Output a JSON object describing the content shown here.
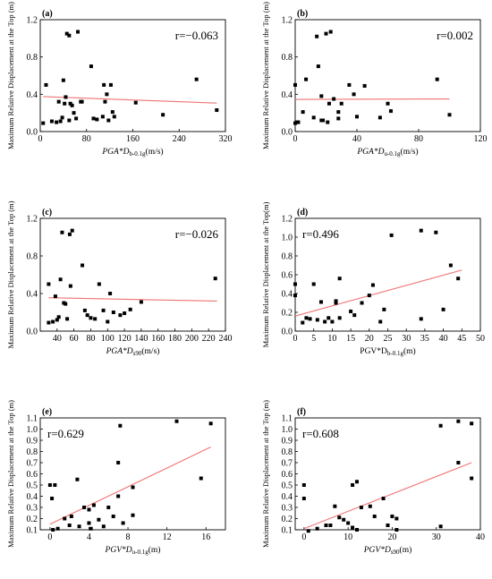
{
  "chart_data": [
    {
      "type": "scatter",
      "panel": "(a)",
      "ylabel": "Maximum Relative Displacement at the Top (m)",
      "xlabel": "PGA*D",
      "xlabel_sub": "b-0.1g",
      "xlabel_unit": "(m/s)",
      "xlabel_italic": true,
      "annotation": "r=−0.063",
      "annotation_pos": "top-right",
      "xlim": [
        0,
        320
      ],
      "ylim": [
        0,
        1.2
      ],
      "xticks": [
        "0",
        "80",
        "160",
        "240",
        "320"
      ],
      "yticks": [
        "0.0",
        "0.4",
        "0.8",
        "1.2"
      ],
      "fit": {
        "x": [
          5,
          305
        ],
        "y": [
          0.375,
          0.305
        ]
      },
      "points": [
        [
          5,
          0.09
        ],
        [
          10,
          0.5
        ],
        [
          20,
          0.11
        ],
        [
          28,
          0.1
        ],
        [
          32,
          0.32
        ],
        [
          35,
          0.11
        ],
        [
          38,
          0.15
        ],
        [
          40,
          0.55
        ],
        [
          42,
          0.3
        ],
        [
          44,
          0.37
        ],
        [
          46,
          1.05
        ],
        [
          50,
          1.03
        ],
        [
          50,
          0.12
        ],
        [
          52,
          0.3
        ],
        [
          55,
          0.28
        ],
        [
          58,
          0.2
        ],
        [
          62,
          0.14
        ],
        [
          65,
          1.07
        ],
        [
          70,
          0.32
        ],
        [
          72,
          0.32
        ],
        [
          88,
          0.7
        ],
        [
          92,
          0.14
        ],
        [
          98,
          0.13
        ],
        [
          108,
          0.16
        ],
        [
          110,
          0.5
        ],
        [
          112,
          0.32
        ],
        [
          115,
          0.4
        ],
        [
          118,
          0.12
        ],
        [
          122,
          0.5
        ],
        [
          125,
          0.21
        ],
        [
          128,
          0.16
        ],
        [
          165,
          0.31
        ],
        [
          212,
          0.18
        ],
        [
          270,
          0.56
        ],
        [
          305,
          0.23
        ]
      ]
    },
    {
      "type": "scatter",
      "panel": "(b)",
      "ylabel": "Maximum Relative Displacement at the Top (m)",
      "xlabel": "PGA*D",
      "xlabel_sub": "u-0.1g",
      "xlabel_unit": "(m/s)",
      "xlabel_italic": true,
      "annotation": "r=0.002",
      "annotation_pos": "top-right",
      "xlim": [
        0,
        120
      ],
      "ylim": [
        0,
        1.2
      ],
      "xticks": [
        "0",
        "40",
        "80",
        "120"
      ],
      "yticks": [
        "0.0",
        "0.4",
        "0.8",
        "1.2"
      ],
      "fit": {
        "x": [
          0,
          100
        ],
        "y": [
          0.345,
          0.35
        ]
      },
      "points": [
        [
          0,
          0.09
        ],
        [
          0,
          0.5
        ],
        [
          1,
          0.1
        ],
        [
          2,
          0.1
        ],
        [
          5,
          0.21
        ],
        [
          7,
          0.56
        ],
        [
          12,
          0.15
        ],
        [
          14,
          1.02
        ],
        [
          15,
          0.7
        ],
        [
          17,
          0.38
        ],
        [
          17,
          0.12
        ],
        [
          18,
          0.12
        ],
        [
          20,
          1.05
        ],
        [
          21,
          0.1
        ],
        [
          22,
          0.3
        ],
        [
          23,
          1.07
        ],
        [
          25,
          0.35
        ],
        [
          28,
          0.21
        ],
        [
          28,
          0.14
        ],
        [
          30,
          0.3
        ],
        [
          35,
          0.5
        ],
        [
          38,
          0.4
        ],
        [
          40,
          0.16
        ],
        [
          45,
          0.49
        ],
        [
          55,
          0.15
        ],
        [
          60,
          0.3
        ],
        [
          62,
          0.22
        ],
        [
          92,
          0.56
        ],
        [
          100,
          0.18
        ]
      ]
    },
    {
      "type": "scatter",
      "panel": "(c)",
      "ylabel": "Maximum Relative Displacement at the Top (m)",
      "xlabel": "PGA*D",
      "xlabel_sub": "s90",
      "xlabel_unit": "(m/s)",
      "xlabel_italic": true,
      "annotation": "r=−0.026",
      "annotation_pos": "top-right",
      "xlim": [
        20,
        240
      ],
      "ylim": [
        0,
        1.2
      ],
      "xticks": [
        "40",
        "60",
        "80",
        "100",
        "120",
        "140",
        "160",
        "180",
        "200",
        "220",
        "240"
      ],
      "yticks": [
        "0.0",
        "0.4",
        "0.8",
        "1.2"
      ],
      "fit": {
        "x": [
          30,
          230
        ],
        "y": [
          0.355,
          0.32
        ]
      },
      "points": [
        [
          30,
          0.09
        ],
        [
          30,
          0.5
        ],
        [
          35,
          0.1
        ],
        [
          38,
          0.37
        ],
        [
          40,
          0.12
        ],
        [
          42,
          0.15
        ],
        [
          44,
          0.55
        ],
        [
          46,
          1.05
        ],
        [
          48,
          0.3
        ],
        [
          50,
          0.29
        ],
        [
          52,
          0.13
        ],
        [
          55,
          1.03
        ],
        [
          56,
          0.48
        ],
        [
          58,
          1.07
        ],
        [
          70,
          0.7
        ],
        [
          73,
          0.22
        ],
        [
          76,
          0.17
        ],
        [
          80,
          0.14
        ],
        [
          85,
          0.13
        ],
        [
          90,
          0.5
        ],
        [
          95,
          0.22
        ],
        [
          100,
          0.1
        ],
        [
          103,
          0.4
        ],
        [
          107,
          0.2
        ],
        [
          115,
          0.17
        ],
        [
          120,
          0.19
        ],
        [
          127,
          0.23
        ],
        [
          140,
          0.31
        ],
        [
          228,
          0.56
        ]
      ]
    },
    {
      "type": "scatter",
      "panel": "(d)",
      "ylabel": "Maximum Relative Displacement at the Top(m)",
      "xlabel": "PGV*D",
      "xlabel_sub": "b-0.1g",
      "xlabel_unit": "(m)",
      "xlabel_italic": false,
      "annotation": "r=0.496",
      "annotation_pos": "top-left",
      "xlim": [
        0,
        50
      ],
      "ylim": [
        0,
        1.2
      ],
      "xticks": [
        "0",
        "5",
        "10",
        "15",
        "20",
        "25",
        "30",
        "35",
        "40",
        "45",
        "50"
      ],
      "yticks": [
        "0.0",
        "0.2",
        "0.4",
        "0.6",
        "0.8",
        "1.0",
        "1.2"
      ],
      "fit": {
        "x": [
          0,
          45
        ],
        "y": [
          0.16,
          0.65
        ]
      },
      "points": [
        [
          0,
          0.5
        ],
        [
          0,
          0.38
        ],
        [
          2,
          0.09
        ],
        [
          3,
          0.14
        ],
        [
          4,
          0.13
        ],
        [
          5,
          0.5
        ],
        [
          6,
          0.12
        ],
        [
          7,
          0.31
        ],
        [
          8,
          0.1
        ],
        [
          9,
          0.14
        ],
        [
          10,
          0.1
        ],
        [
          11,
          0.3
        ],
        [
          11,
          0.32
        ],
        [
          12,
          0.56
        ],
        [
          12,
          0.14
        ],
        [
          15,
          0.21
        ],
        [
          16,
          0.17
        ],
        [
          18,
          0.3
        ],
        [
          20,
          0.38
        ],
        [
          21,
          0.49
        ],
        [
          23,
          0.1
        ],
        [
          24,
          0.23
        ],
        [
          26,
          1.02
        ],
        [
          34,
          1.07
        ],
        [
          34,
          0.13
        ],
        [
          38,
          1.05
        ],
        [
          40,
          0.23
        ],
        [
          42,
          0.7
        ],
        [
          44,
          0.56
        ]
      ]
    },
    {
      "type": "scatter",
      "panel": "(e)",
      "ylabel": "Maximum Relative Displacement at the Top (m)",
      "xlabel": "PGV*D",
      "xlabel_sub": "u-0.1g",
      "xlabel_unit": "(m)",
      "xlabel_italic": true,
      "annotation": "r=0.629",
      "annotation_pos": "top-left",
      "xlim": [
        -1,
        18
      ],
      "ylim": [
        0.1,
        1.1
      ],
      "xticks": [
        "0",
        "4",
        "8",
        "12",
        "16"
      ],
      "yticks": [
        "0.1",
        "0.2",
        "0.3",
        "0.4",
        "0.5",
        "0.6",
        "0.7",
        "0.8",
        "0.9",
        "1.0",
        "1.1"
      ],
      "fit": {
        "x": [
          0,
          16.5
        ],
        "y": [
          0.15,
          0.84
        ]
      },
      "points": [
        [
          0,
          0.5
        ],
        [
          0.2,
          0.38
        ],
        [
          0.3,
          0.1
        ],
        [
          0.5,
          0.5
        ],
        [
          0.8,
          0.11
        ],
        [
          1.5,
          0.2
        ],
        [
          2,
          0.14
        ],
        [
          2.2,
          0.22
        ],
        [
          2.8,
          0.55
        ],
        [
          3,
          0.13
        ],
        [
          3.5,
          0.3
        ],
        [
          4,
          0.16
        ],
        [
          4,
          0.28
        ],
        [
          4.2,
          0.11
        ],
        [
          4.5,
          0.32
        ],
        [
          5,
          0.19
        ],
        [
          5.5,
          0.13
        ],
        [
          6,
          0.3
        ],
        [
          6.5,
          0.22
        ],
        [
          7,
          0.4
        ],
        [
          7,
          0.7
        ],
        [
          7.2,
          1.03
        ],
        [
          7.5,
          0.16
        ],
        [
          8.5,
          0.48
        ],
        [
          8.5,
          0.23
        ],
        [
          13,
          1.07
        ],
        [
          15.5,
          0.56
        ],
        [
          16.5,
          1.05
        ]
      ]
    },
    {
      "type": "scatter",
      "panel": "(f)",
      "ylabel": "Maximum Relative Displacement at the Top (m)",
      "xlabel": "PGV*D",
      "xlabel_sub": "s90",
      "xlabel_unit": "(m)",
      "xlabel_italic": true,
      "annotation": "r=0.608",
      "annotation_pos": "top-left",
      "xlim": [
        -2,
        40
      ],
      "ylim": [
        0.1,
        1.1
      ],
      "xticks": [
        "0",
        "10",
        "20",
        "30",
        "40"
      ],
      "yticks": [
        "0.1",
        "0.2",
        "0.3",
        "0.4",
        "0.5",
        "0.6",
        "0.7",
        "0.8",
        "0.9",
        "1.0",
        "1.1"
      ],
      "fit": {
        "x": [
          0,
          38
        ],
        "y": [
          0.11,
          0.7
        ]
      },
      "points": [
        [
          0,
          0.5
        ],
        [
          0,
          0.38
        ],
        [
          1,
          0.09
        ],
        [
          3,
          0.11
        ],
        [
          5,
          0.14
        ],
        [
          6,
          0.14
        ],
        [
          7,
          0.31
        ],
        [
          8,
          0.21
        ],
        [
          9,
          0.19
        ],
        [
          10,
          0.16
        ],
        [
          11,
          0.12
        ],
        [
          11,
          0.5
        ],
        [
          12,
          0.1
        ],
        [
          12,
          0.53
        ],
        [
          13,
          0.3
        ],
        [
          15,
          0.31
        ],
        [
          16,
          0.22
        ],
        [
          18,
          0.38
        ],
        [
          19,
          0.14
        ],
        [
          20,
          0.22
        ],
        [
          21,
          0.1
        ],
        [
          21,
          0.2
        ],
        [
          31,
          1.03
        ],
        [
          31,
          0.13
        ],
        [
          35,
          1.07
        ],
        [
          35,
          0.7
        ],
        [
          38,
          1.05
        ],
        [
          38,
          0.56
        ]
      ]
    }
  ]
}
